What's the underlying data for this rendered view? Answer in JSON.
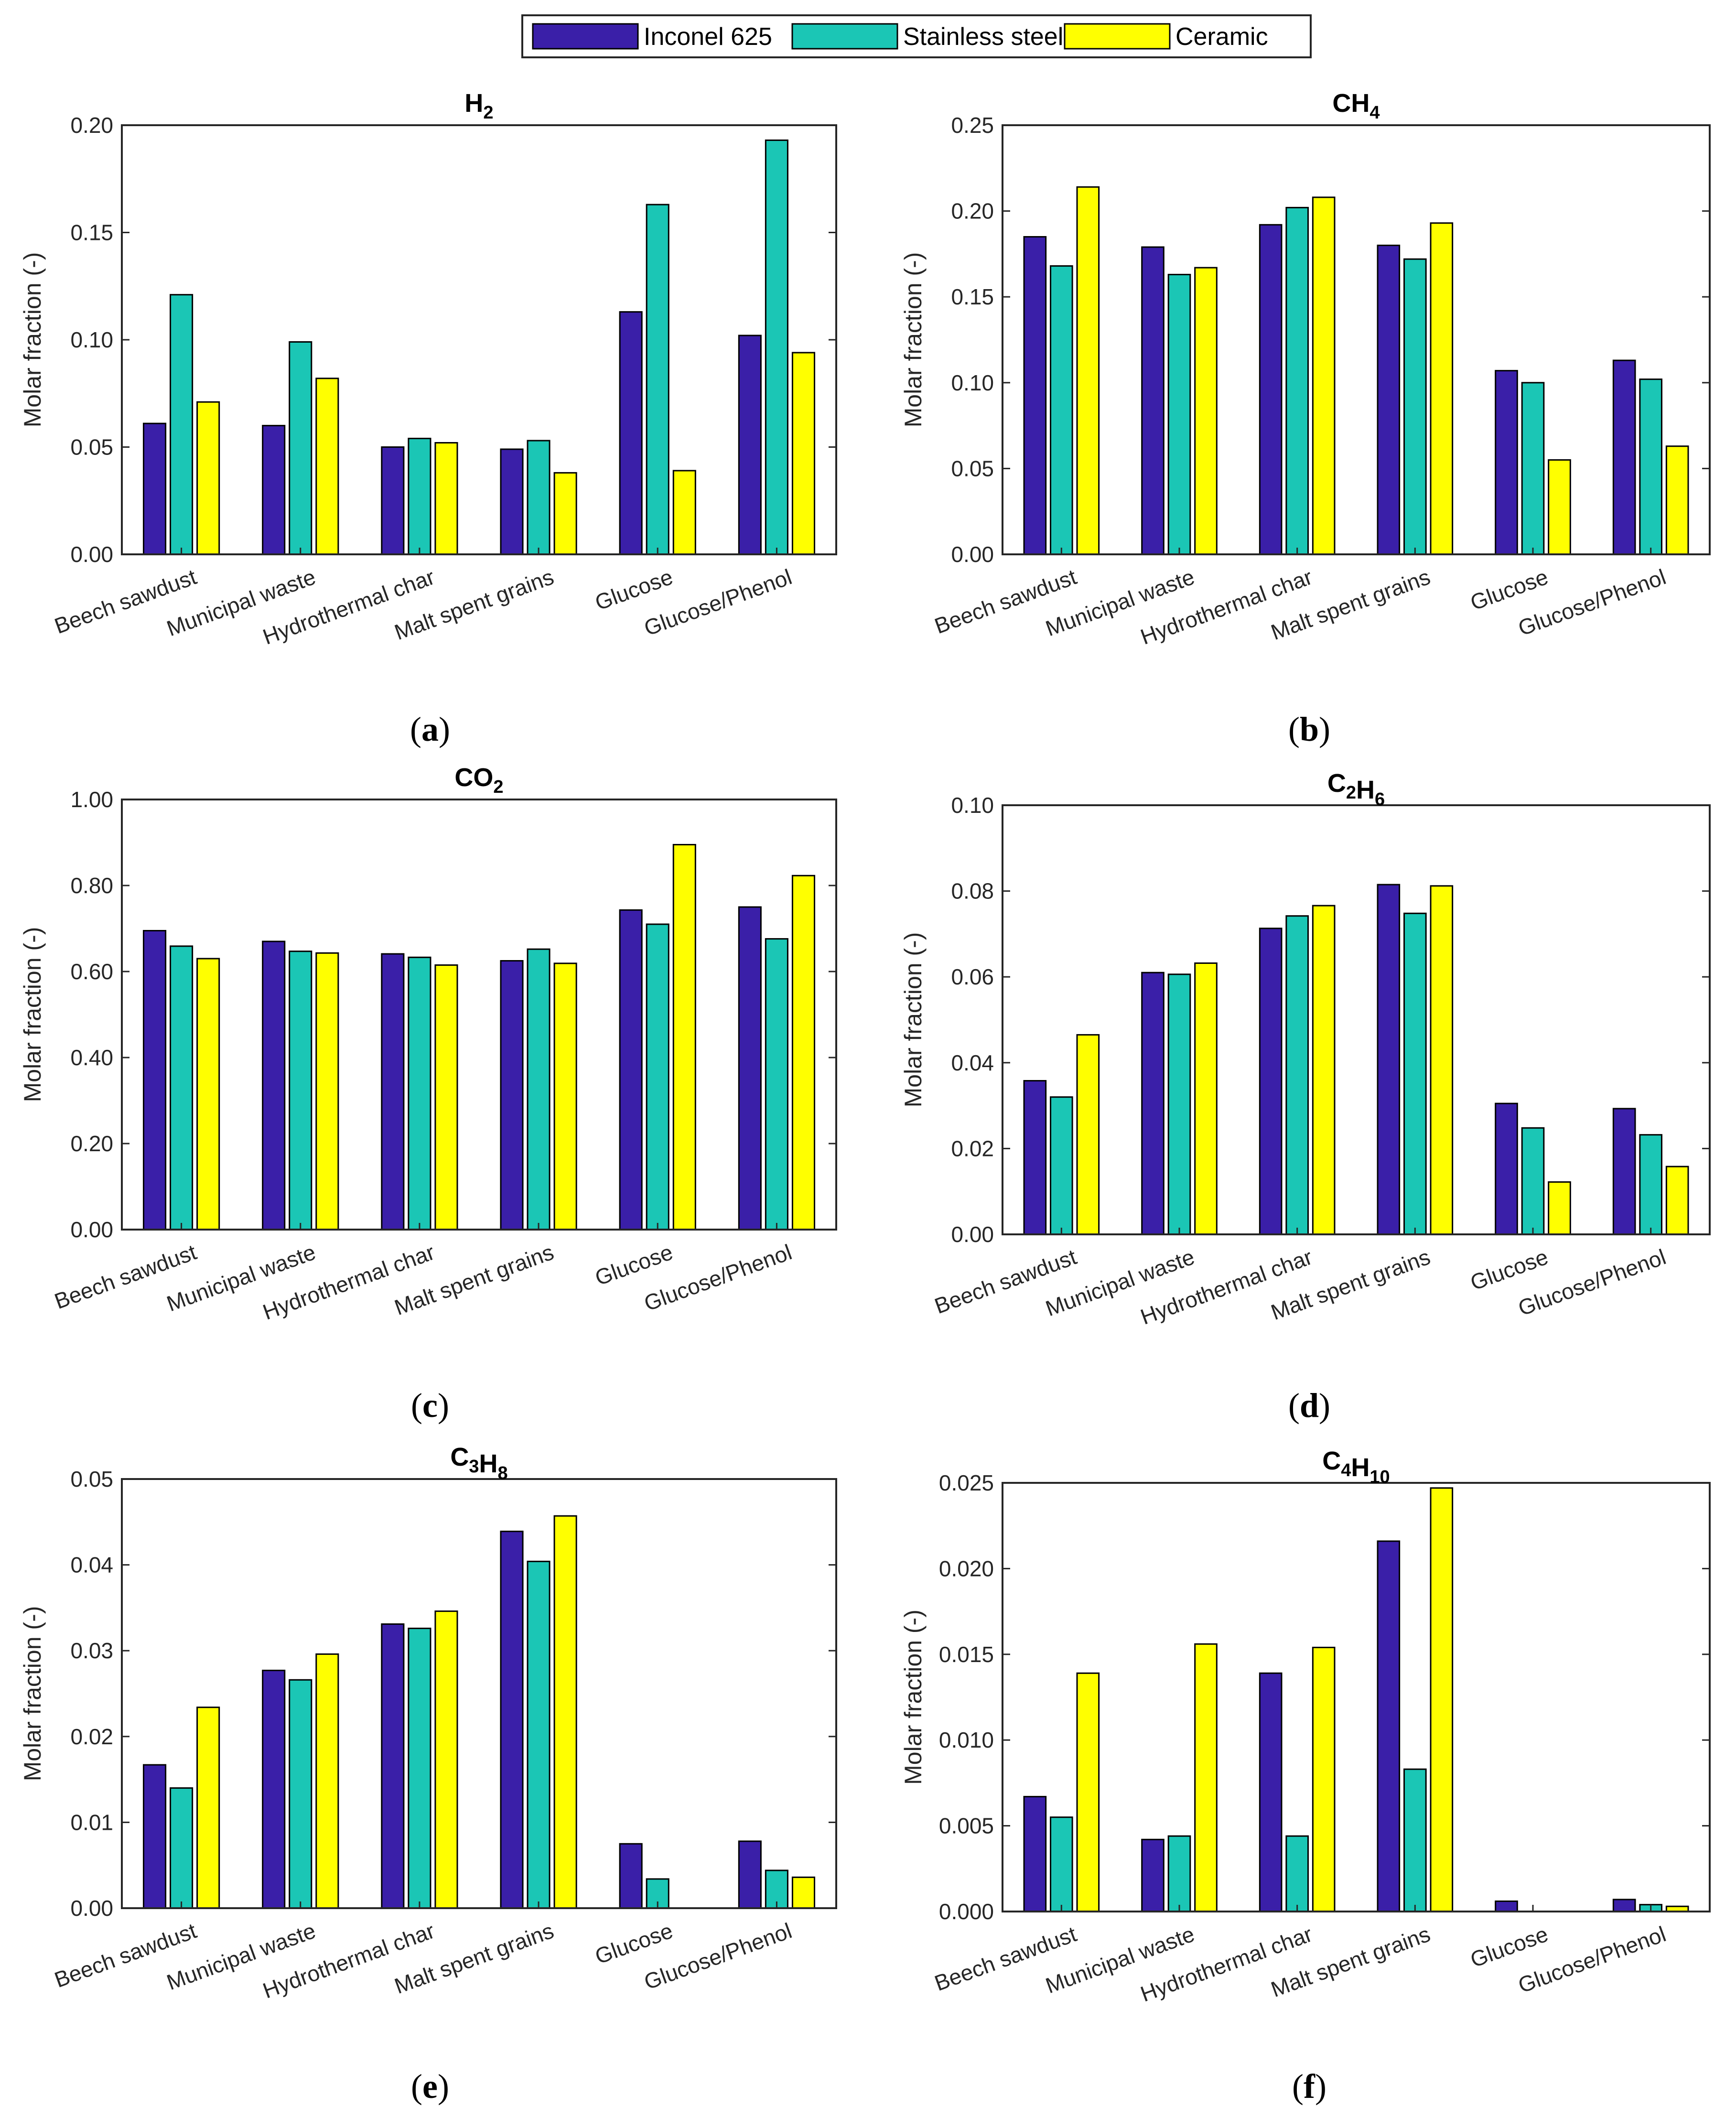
{
  "legend": [
    {
      "name": "Inconel 625",
      "color": "#3A1FA8"
    },
    {
      "name": "Stainless steel",
      "color": "#1BC6B5"
    },
    {
      "name": "Ceramic",
      "color": "#FFFF00"
    }
  ],
  "categories": [
    "Beech sawdust",
    "Municipal waste",
    "Hydrothermal char",
    "Malt spent grains",
    "Glucose",
    "Glucose/Phenol"
  ],
  "chart_data": [
    {
      "type": "bar",
      "panel": "a",
      "title": {
        "base": [
          "H",
          ""
        ],
        "subs": [
          "2"
        ]
      },
      "ylabel": "Molar fraction (-)",
      "ylim": [
        0,
        0.2
      ],
      "ticks": [
        "0.00",
        "0.05",
        "0.10",
        "0.15",
        "0.20"
      ],
      "series": [
        {
          "name": "Inconel 625",
          "values": [
            0.061,
            0.06,
            0.05,
            0.049,
            0.113,
            0.102
          ]
        },
        {
          "name": "Stainless steel",
          "values": [
            0.121,
            0.099,
            0.054,
            0.053,
            0.163,
            0.193
          ]
        },
        {
          "name": "Ceramic",
          "values": [
            0.071,
            0.082,
            0.052,
            0.038,
            0.039,
            0.094
          ]
        }
      ],
      "caption": {
        "open": "(",
        "letter": "a",
        "close": ")"
      }
    },
    {
      "type": "bar",
      "panel": "b",
      "title": {
        "base": [
          "CH",
          ""
        ],
        "subs": [
          "4"
        ]
      },
      "ylabel": "Molar fraction (-)",
      "ylim": [
        0,
        0.25
      ],
      "ticks": [
        "0.00",
        "0.05",
        "0.10",
        "0.15",
        "0.20",
        "0.25"
      ],
      "series": [
        {
          "name": "Inconel 625",
          "values": [
            0.185,
            0.179,
            0.192,
            0.18,
            0.107,
            0.113
          ]
        },
        {
          "name": "Stainless steel",
          "values": [
            0.168,
            0.163,
            0.202,
            0.172,
            0.1,
            0.102
          ]
        },
        {
          "name": "Ceramic",
          "values": [
            0.214,
            0.167,
            0.208,
            0.193,
            0.055,
            0.063
          ]
        }
      ],
      "caption": {
        "open": "(",
        "letter": "b",
        "close": ")"
      }
    },
    {
      "type": "bar",
      "panel": "c",
      "title": {
        "base": [
          "CO",
          ""
        ],
        "subs": [
          "2"
        ]
      },
      "ylabel": "Molar fraction (-)",
      "ylim": [
        0,
        1.0
      ],
      "ticks": [
        "0.00",
        "0.20",
        "0.40",
        "0.60",
        "0.80",
        "1.00"
      ],
      "series": [
        {
          "name": "Inconel 625",
          "values": [
            0.695,
            0.67,
            0.641,
            0.625,
            0.743,
            0.75
          ]
        },
        {
          "name": "Stainless steel",
          "values": [
            0.659,
            0.647,
            0.633,
            0.652,
            0.71,
            0.676
          ]
        },
        {
          "name": "Ceramic",
          "values": [
            0.63,
            0.643,
            0.615,
            0.619,
            0.895,
            0.823
          ]
        }
      ],
      "caption": {
        "open": "(",
        "letter": "c",
        "close": ")"
      }
    },
    {
      "type": "bar",
      "panel": "d",
      "title": {
        "base": [
          "C",
          "H",
          ""
        ],
        "subs": [
          "2",
          "6"
        ]
      },
      "ylabel": "Molar fraction (-)",
      "ylim": [
        0,
        0.1
      ],
      "ticks": [
        "0.00",
        "0.02",
        "0.04",
        "0.06",
        "0.08",
        "0.10"
      ],
      "series": [
        {
          "name": "Inconel 625",
          "values": [
            0.0358,
            0.061,
            0.0713,
            0.0815,
            0.0305,
            0.0293
          ]
        },
        {
          "name": "Stainless steel",
          "values": [
            0.032,
            0.0606,
            0.0742,
            0.0748,
            0.0248,
            0.0232
          ]
        },
        {
          "name": "Ceramic",
          "values": [
            0.0465,
            0.0632,
            0.0766,
            0.0812,
            0.0122,
            0.0158
          ]
        }
      ],
      "caption": {
        "open": "(",
        "letter": "d",
        "close": ")"
      }
    },
    {
      "type": "bar",
      "panel": "e",
      "title": {
        "base": [
          "C",
          "H",
          ""
        ],
        "subs": [
          "3",
          "8"
        ]
      },
      "ylabel": "Molar fraction (-)",
      "ylim": [
        0,
        0.05
      ],
      "ticks": [
        "0.00",
        "0.01",
        "0.02",
        "0.03",
        "0.04",
        "0.05"
      ],
      "series": [
        {
          "name": "Inconel 625",
          "values": [
            0.0167,
            0.0277,
            0.0331,
            0.0439,
            0.0075,
            0.0078
          ]
        },
        {
          "name": "Stainless steel",
          "values": [
            0.014,
            0.0266,
            0.0326,
            0.0404,
            0.0034,
            0.0044
          ]
        },
        {
          "name": "Ceramic",
          "values": [
            0.0234,
            0.0296,
            0.0346,
            0.0457,
            0.0,
            0.0036
          ]
        }
      ],
      "caption": {
        "open": "(",
        "letter": "e",
        "close": ")"
      }
    },
    {
      "type": "bar",
      "panel": "f",
      "title": {
        "base": [
          "C",
          "H",
          ""
        ],
        "subs": [
          "4",
          "10"
        ]
      },
      "ylabel": "Molar fraction (-)",
      "ylim": [
        0,
        0.025
      ],
      "ticks": [
        "0.000",
        "0.005",
        "0.010",
        "0.015",
        "0.020",
        "0.025"
      ],
      "series": [
        {
          "name": "Inconel 625",
          "values": [
            0.0067,
            0.0042,
            0.0139,
            0.0216,
            0.0006,
            0.0007
          ]
        },
        {
          "name": "Stainless steel",
          "values": [
            0.0055,
            0.0044,
            0.0044,
            0.0083,
            0.0,
            0.0004
          ]
        },
        {
          "name": "Ceramic",
          "values": [
            0.0139,
            0.0156,
            0.0154,
            0.0247,
            0.0,
            0.0003
          ]
        }
      ],
      "caption": {
        "open": "(",
        "letter": "f",
        "close": ")"
      }
    }
  ]
}
